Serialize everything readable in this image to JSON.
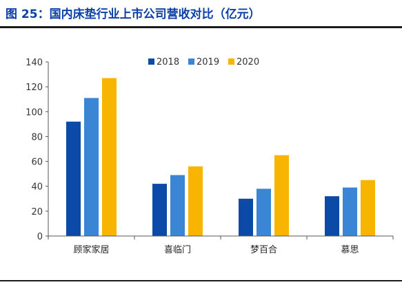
{
  "figure": {
    "title": "图 25：国内床垫行业上市公司营收对比（亿元）"
  },
  "colors": {
    "title": "#0a3ea8",
    "series": [
      "#0b4aa6",
      "#3a86d4",
      "#f8b500"
    ]
  },
  "chart_data": {
    "type": "bar",
    "categories": [
      "顾家家居",
      "喜临门",
      "梦百合",
      "慕思"
    ],
    "series": [
      {
        "name": "2018",
        "values": [
          92,
          42,
          30,
          32
        ]
      },
      {
        "name": "2019",
        "values": [
          111,
          49,
          38,
          39
        ]
      },
      {
        "name": "2020",
        "values": [
          127,
          56,
          65,
          45
        ]
      }
    ],
    "ylim": [
      0,
      140
    ],
    "yticks": [
      0,
      20,
      40,
      60,
      80,
      100,
      120,
      140
    ],
    "grid": false,
    "legend_position": "top-center"
  }
}
